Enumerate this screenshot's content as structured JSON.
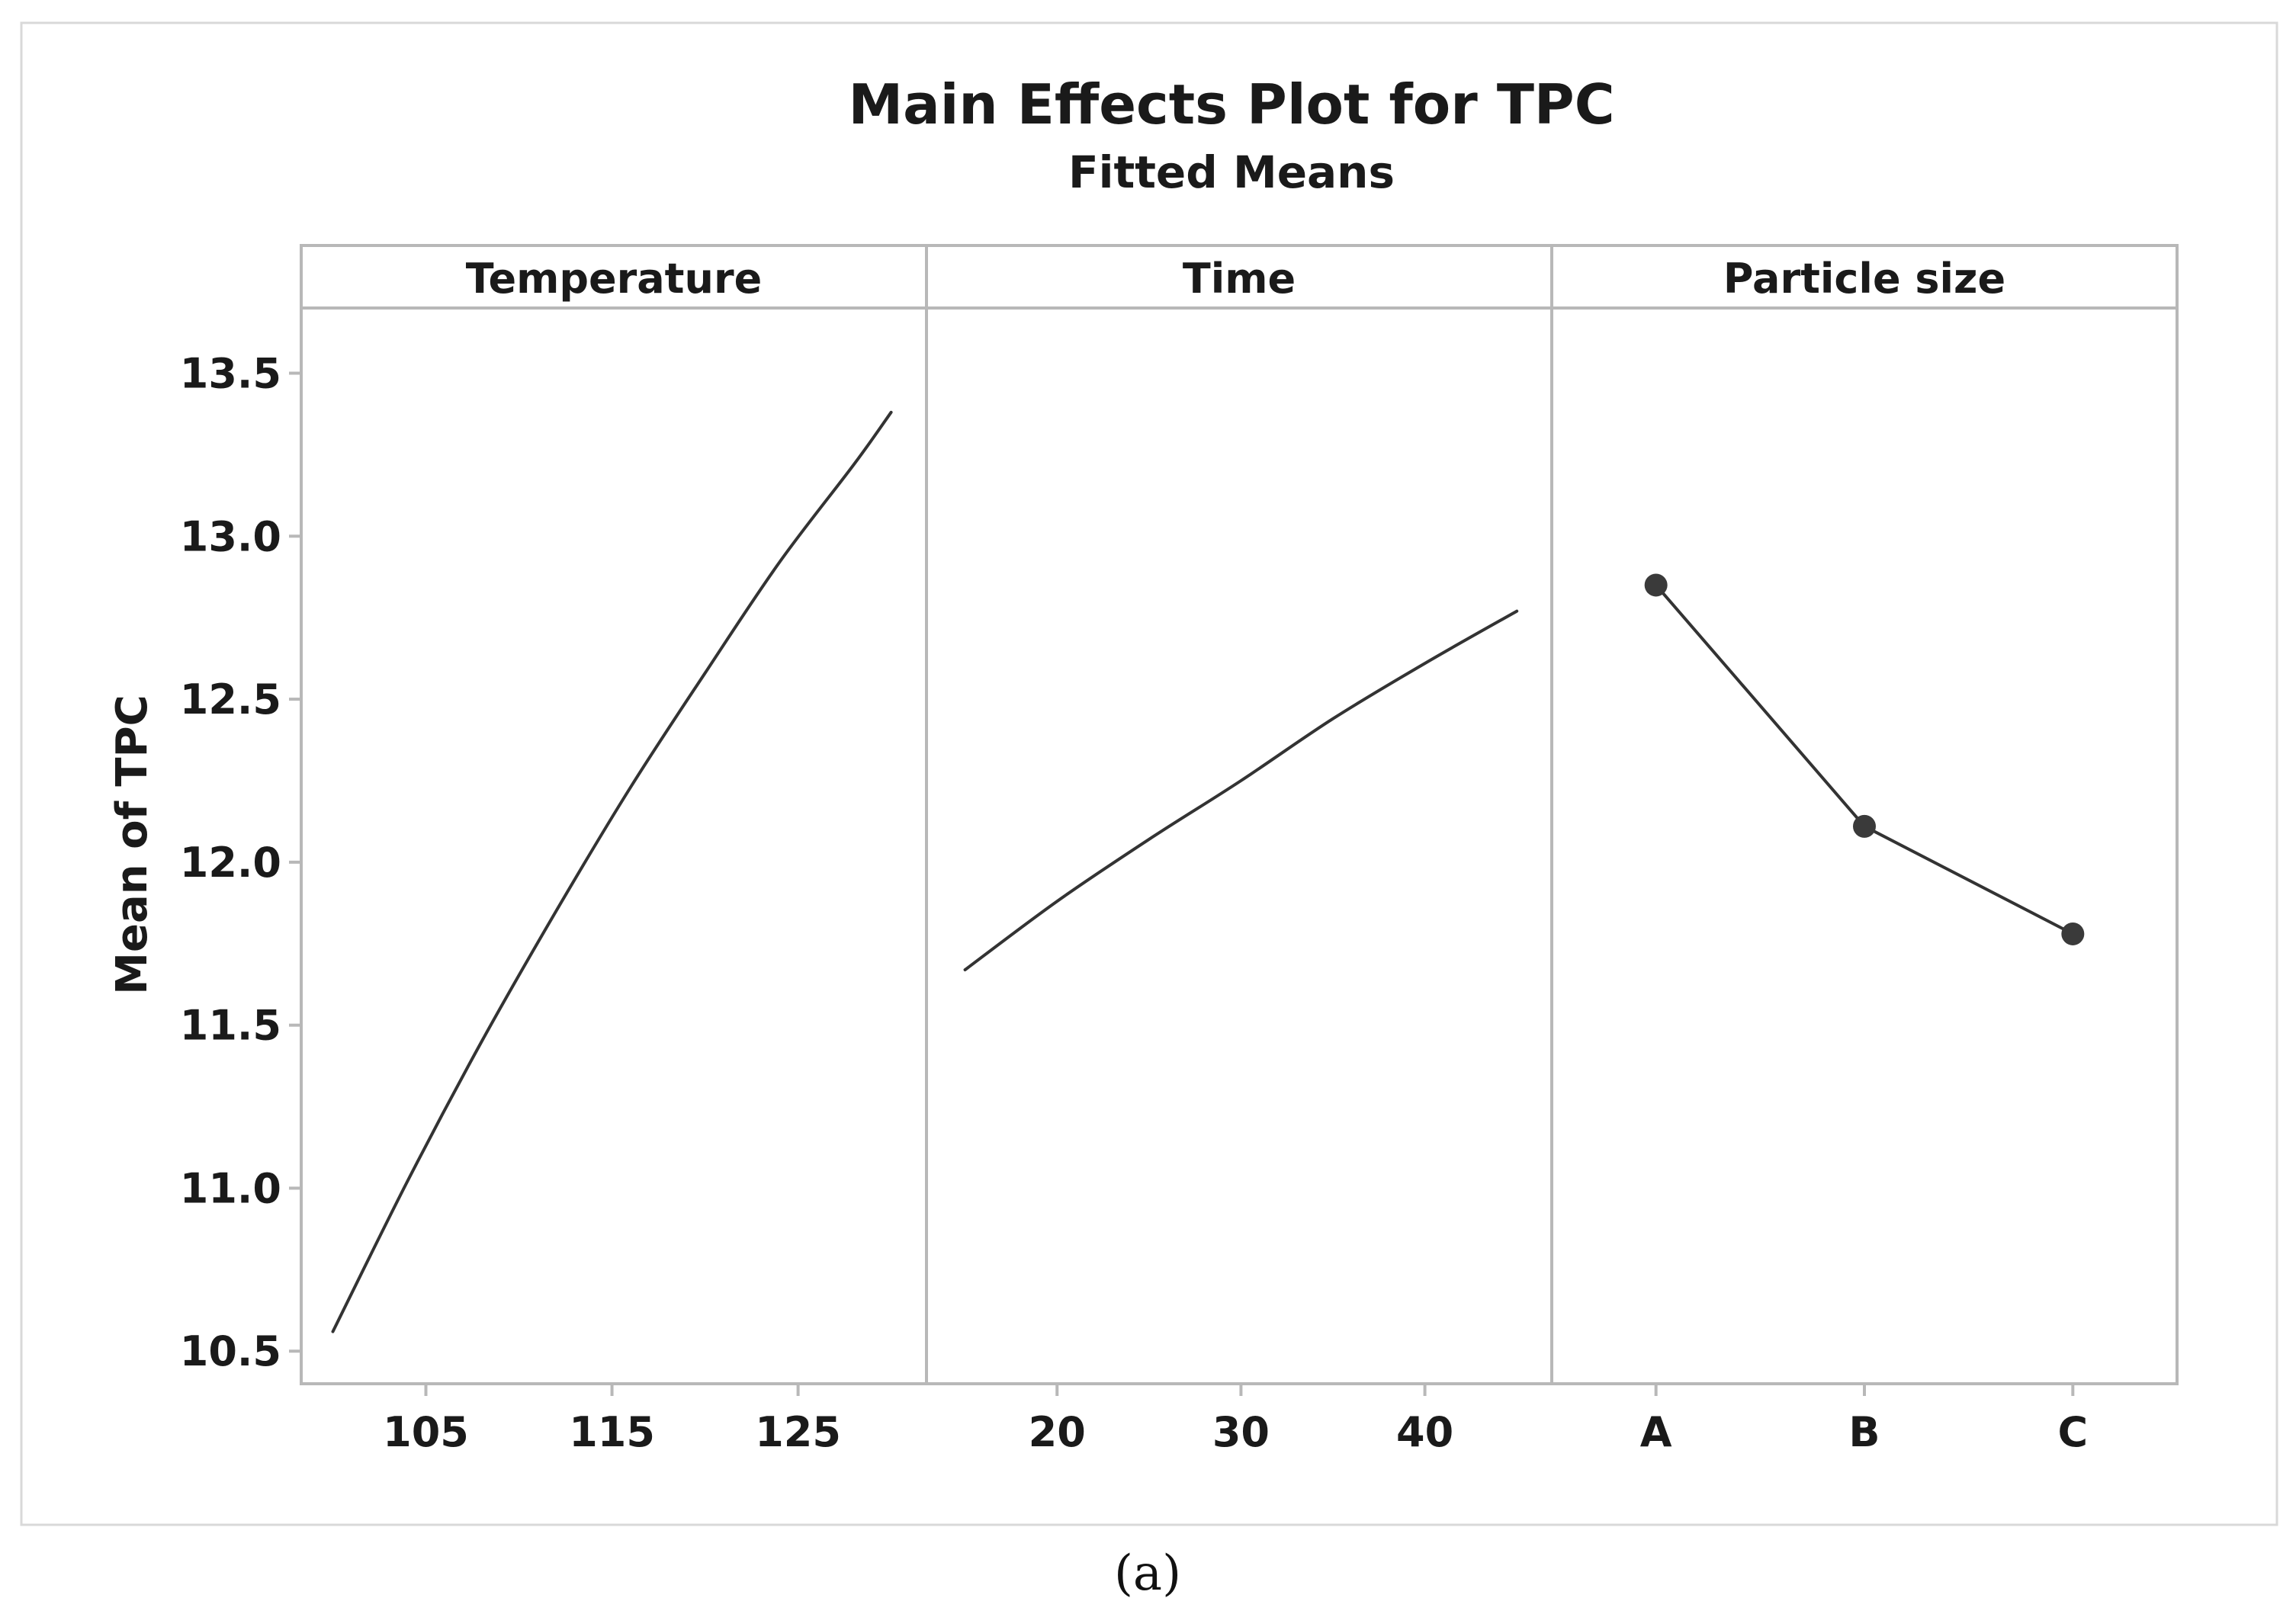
{
  "chart_data": {
    "type": "line",
    "title": "Main Effects Plot for TPC",
    "subtitle": "Fitted Means",
    "ylabel": "Mean of TPC",
    "ylim": [
      10.4,
      13.7
    ],
    "yticks": [
      "10.5",
      "11.0",
      "11.5",
      "12.0",
      "12.5",
      "13.0",
      "13.5"
    ],
    "panels": [
      {
        "name": "Temperature",
        "xlim": [
          98.3,
          131.9
        ],
        "xticks": [
          "105",
          "115",
          "125"
        ],
        "markers": false,
        "x": [
          100,
          104,
          108,
          112,
          116,
          120,
          124,
          128,
          130
        ],
        "y": [
          10.56,
          11.02,
          11.45,
          11.85,
          12.23,
          12.58,
          12.92,
          13.22,
          13.38
        ]
      },
      {
        "name": "Time",
        "xlim": [
          12.9,
          46.9
        ],
        "xticks": [
          "20",
          "30",
          "40"
        ],
        "markers": false,
        "x": [
          15,
          20,
          25,
          30,
          35,
          40,
          45
        ],
        "y": [
          11.67,
          11.88,
          12.07,
          12.25,
          12.44,
          12.61,
          12.77
        ]
      },
      {
        "name": "Particle size",
        "xlim": [
          0.5,
          3.5
        ],
        "categories": [
          "A",
          "B",
          "C"
        ],
        "xticks": [
          "A",
          "B",
          "C"
        ],
        "markers": true,
        "x": [
          1,
          2,
          3
        ],
        "y": [
          12.85,
          12.11,
          11.78
        ]
      }
    ]
  },
  "caption": "(a)",
  "colors": {
    "line": "#333333",
    "frame": "#b8b8b8",
    "marker": "#3a3a3a"
  }
}
